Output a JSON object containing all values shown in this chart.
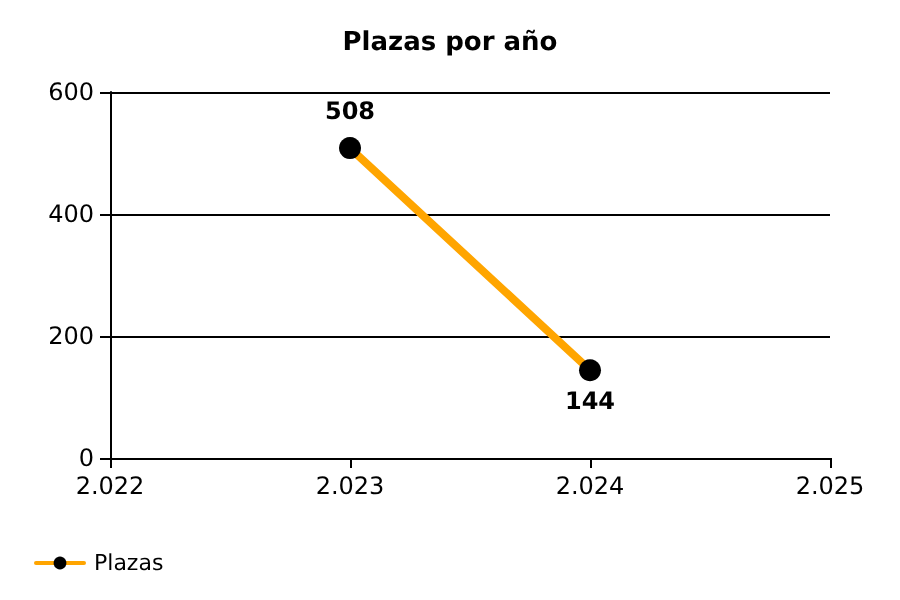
{
  "chart_data": {
    "type": "line",
    "title": "Plazas por año",
    "x": [
      2023,
      2024
    ],
    "series": [
      {
        "name": "Plazas",
        "color": "#ffa500",
        "values": [
          508,
          144
        ]
      }
    ],
    "xlim": [
      2022,
      2025
    ],
    "xticks": [
      {
        "value": 2022,
        "label": "2.022"
      },
      {
        "value": 2023,
        "label": "2.023"
      },
      {
        "value": 2024,
        "label": "2.024"
      },
      {
        "value": 2025,
        "label": "2.025"
      }
    ],
    "ylim": [
      0,
      600
    ],
    "yticks": [
      0,
      200,
      400,
      600
    ],
    "grid": "y",
    "legend": "bottom left",
    "marker": "circle",
    "line_style": "solid",
    "data_labels": true
  }
}
